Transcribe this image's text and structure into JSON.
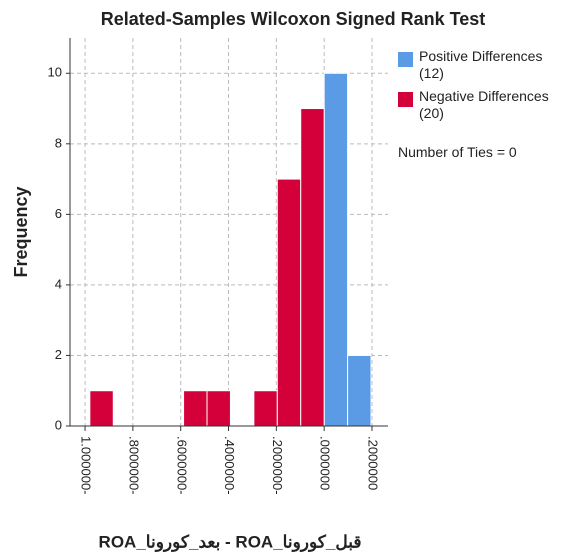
{
  "chart_data": {
    "type": "histogram",
    "title": "Related-Samples Wilcoxon Signed Rank Test",
    "x_label": "ROA_بعد_كورونا - ROA_قبل_كورونا",
    "y_label": "Frequency",
    "bins": [
      -0.98,
      -0.882,
      -0.784,
      -0.686,
      -0.588,
      -0.49,
      -0.392,
      -0.294,
      -0.196,
      -0.098,
      0,
      0.098,
      0.196
    ],
    "series": [
      {
        "name": "Positive Differences (12)",
        "color": "#5b9be6",
        "values": [
          0,
          0,
          0,
          0,
          0,
          0,
          0,
          0,
          0,
          0,
          10,
          2
        ]
      },
      {
        "name": "Negative Differences (20)",
        "color": "#d3003a",
        "values": [
          1,
          0,
          0,
          0,
          1,
          1,
          0,
          1,
          7,
          9,
          0,
          0
        ]
      }
    ],
    "annotation": "Number of Ties = 0",
    "xlim": [
      -1.063,
      0.267
    ],
    "xticks": [
      {
        "value": -1,
        "label": "1.000000-"
      },
      {
        "value": -0.8,
        "label": ".8000000-"
      },
      {
        "value": -0.6,
        "label": ".6000000-"
      },
      {
        "value": -0.4,
        "label": ".4000000-"
      },
      {
        "value": -0.2,
        "label": ".2000000-"
      },
      {
        "value": 0,
        "label": ".0000000"
      },
      {
        "value": 0.2,
        "label": ".2000000"
      }
    ],
    "ylim": [
      0,
      11
    ],
    "yticks": [
      0,
      2,
      4,
      6,
      8,
      10
    ],
    "grid": true,
    "legend": "right"
  }
}
